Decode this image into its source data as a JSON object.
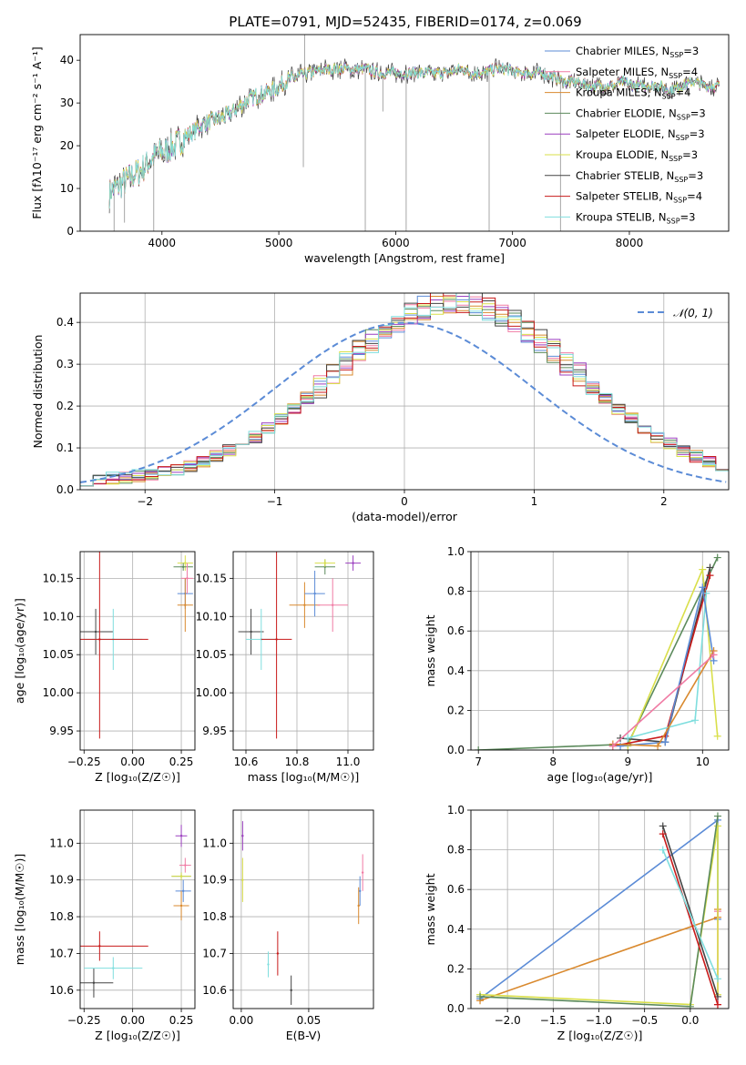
{
  "figure_title": "PLATE=0791, MJD=52435, FIBERID=0174, z=0.069",
  "colors": {
    "Chabrier MILES": "#5b8bd6",
    "Salpeter MILES": "#f07ba4",
    "Kroupa MILES": "#d9892e",
    "Chabrier ELODIE": "#5b8a5b",
    "Salpeter ELODIE": "#9b3fbf",
    "Kroupa ELODIE": "#d9df4a",
    "Chabrier STELIB": "#444444",
    "Salpeter STELIB": "#c81a1a",
    "Kroupa STELIB": "#7fdede"
  },
  "chart_data": [
    {
      "id": "spectrum",
      "type": "line",
      "title": "PLATE=0791, MJD=52435, FIBERID=0174, z=0.069",
      "xlabel": "wavelength [Angstrom, rest frame]",
      "ylabel": "Flux [fλ10⁻¹⁷ erg cm⁻² s⁻¹ A⁻¹]",
      "xlim": [
        3300,
        8850
      ],
      "ylim": [
        0,
        46
      ],
      "xticks": [
        4000,
        5000,
        6000,
        7000,
        8000
      ],
      "yticks": [
        0,
        10,
        20,
        30,
        40
      ],
      "legend_position": "top-right",
      "series_legend": [
        {
          "model": "Chabrier MILES",
          "label": "Chabrier MILES, N",
          "nssp": "=3"
        },
        {
          "model": "Salpeter MILES",
          "label": "Salpeter MILES, N",
          "nssp": "=4"
        },
        {
          "model": "Kroupa MILES",
          "label": "Kroupa MILES, N",
          "nssp": "=4"
        },
        {
          "model": "Chabrier ELODIE",
          "label": "Chabrier ELODIE, N",
          "nssp": "=3"
        },
        {
          "model": "Salpeter ELODIE",
          "label": "Salpeter ELODIE, N",
          "nssp": "=3"
        },
        {
          "model": "Kroupa ELODIE",
          "label": "Kroupa ELODIE, N",
          "nssp": "=3"
        },
        {
          "model": "Chabrier STELIB",
          "label": "Chabrier STELIB, N",
          "nssp": "=3"
        },
        {
          "model": "Salpeter STELIB",
          "label": "Salpeter STELIB, N",
          "nssp": "=4"
        },
        {
          "model": "Kroupa STELIB",
          "label": "Kroupa STELIB, N",
          "nssp": "=3"
        }
      ],
      "nssp_subscript": "SSP",
      "continuum": [
        [
          3550,
          9
        ],
        [
          3650,
          11
        ],
        [
          3750,
          13
        ],
        [
          3850,
          15
        ],
        [
          3950,
          18
        ],
        [
          4050,
          19
        ],
        [
          4150,
          21
        ],
        [
          4250,
          23
        ],
        [
          4350,
          25
        ],
        [
          4450,
          26
        ],
        [
          4550,
          27
        ],
        [
          4650,
          29
        ],
        [
          4750,
          31
        ],
        [
          4850,
          32
        ],
        [
          4950,
          33
        ],
        [
          5050,
          35
        ],
        [
          5150,
          36
        ],
        [
          5250,
          37
        ],
        [
          5350,
          37.5
        ],
        [
          5450,
          38
        ],
        [
          5550,
          38
        ],
        [
          5650,
          38
        ],
        [
          5750,
          38
        ],
        [
          5850,
          37
        ],
        [
          5950,
          37
        ],
        [
          6050,
          37
        ],
        [
          6150,
          37
        ],
        [
          6250,
          37
        ],
        [
          6350,
          37
        ],
        [
          6450,
          37
        ],
        [
          6550,
          38
        ],
        [
          6650,
          37
        ],
        [
          6750,
          37
        ],
        [
          6850,
          38
        ],
        [
          6950,
          38
        ],
        [
          7050,
          37
        ],
        [
          7150,
          37
        ],
        [
          7250,
          37
        ],
        [
          7350,
          36
        ],
        [
          7450,
          35
        ],
        [
          7550,
          35
        ],
        [
          7650,
          34
        ],
        [
          7750,
          34
        ],
        [
          7850,
          34
        ],
        [
          7950,
          35
        ],
        [
          8050,
          34
        ],
        [
          8150,
          34
        ],
        [
          8250,
          34
        ],
        [
          8350,
          33
        ],
        [
          8450,
          34
        ],
        [
          8550,
          35
        ],
        [
          8650,
          34
        ],
        [
          8770,
          34
        ]
      ],
      "spikes": [
        [
          3590,
          0
        ],
        [
          3680,
          2
        ],
        [
          3930,
          0
        ],
        [
          5210,
          15
        ],
        [
          5220,
          46
        ],
        [
          5740,
          0
        ],
        [
          5890,
          28
        ],
        [
          6090,
          0
        ],
        [
          6800,
          0
        ],
        [
          7410,
          0
        ]
      ]
    },
    {
      "id": "residuals",
      "type": "step",
      "xlabel": "(data-model)/error",
      "ylabel": "Normed distribution",
      "xlim": [
        -2.5,
        2.5
      ],
      "ylim": [
        0,
        0.47
      ],
      "xticks": [
        -2,
        -1,
        0,
        1,
        2
      ],
      "yticks": [
        0.0,
        0.1,
        0.2,
        0.3,
        0.4
      ],
      "bin_width": 0.1,
      "reference_label": "𝒩(0, 1)",
      "reference_color": "#5b8bd6",
      "legend_position": "top-right",
      "histogram_mean": 0.4,
      "histogram_sigma": 0.93
    },
    {
      "id": "age-vs-Z",
      "type": "scatter",
      "xlabel": "Z [log₁₀(Z/Z☉)]",
      "ylabel": "age  [log₁₀(age/yr)]",
      "xlim": [
        -0.27,
        0.32
      ],
      "ylim": [
        9.925,
        10.185
      ],
      "xticks": [
        -0.25,
        0.0,
        0.25
      ],
      "yticks": [
        9.95,
        10.0,
        10.05,
        10.1,
        10.15
      ],
      "points": [
        {
          "model": "Chabrier STELIB",
          "x": -0.19,
          "y": 10.08,
          "xerr": 0.09,
          "yerr": 0.03
        },
        {
          "model": "Kroupa STELIB",
          "x": -0.1,
          "y": 10.07,
          "xerr": 0.15,
          "yerr": 0.04
        },
        {
          "model": "Salpeter STELIB",
          "x": -0.17,
          "y": 10.07,
          "xerr": 0.25,
          "yerr": 0.13
        },
        {
          "model": "Kroupa ELODIE",
          "x": 0.27,
          "y": 10.17,
          "xerr": 0.04,
          "yerr": 0.01
        },
        {
          "model": "Chabrier ELODIE",
          "x": 0.26,
          "y": 10.165,
          "xerr": 0.05,
          "yerr": 0.005
        },
        {
          "model": "Chabrier MILES",
          "x": 0.27,
          "y": 10.13,
          "xerr": 0.04,
          "yerr": 0.02
        },
        {
          "model": "Salpeter MILES",
          "x": 0.28,
          "y": 10.15,
          "xerr": 0.03,
          "yerr": 0.02
        },
        {
          "model": "Kroupa MILES",
          "x": 0.27,
          "y": 10.115,
          "xerr": 0.04,
          "yerr": 0.035
        }
      ]
    },
    {
      "id": "age-vs-mass",
      "type": "scatter",
      "xlabel": "mass [log₁₀(M/M☉)]",
      "ylabel": "",
      "xlim": [
        10.55,
        11.1
      ],
      "ylim": [
        9.925,
        10.185
      ],
      "xticks": [
        10.6,
        10.8,
        11.0
      ],
      "yticks": [
        9.95,
        10.0,
        10.05,
        10.1,
        10.15
      ],
      "points": [
        {
          "model": "Chabrier STELIB",
          "x": 10.62,
          "y": 10.08,
          "xerr": 0.05,
          "yerr": 0.03
        },
        {
          "model": "Kroupa STELIB",
          "x": 10.66,
          "y": 10.07,
          "xerr": 0.06,
          "yerr": 0.04
        },
        {
          "model": "Salpeter STELIB",
          "x": 10.72,
          "y": 10.07,
          "xerr": 0.06,
          "yerr": 0.13
        },
        {
          "model": "Kroupa MILES",
          "x": 10.83,
          "y": 10.115,
          "xerr": 0.06,
          "yerr": 0.03
        },
        {
          "model": "Chabrier MILES",
          "x": 10.87,
          "y": 10.13,
          "xerr": 0.04,
          "yerr": 0.03
        },
        {
          "model": "Salpeter MILES",
          "x": 10.94,
          "y": 10.115,
          "xerr": 0.06,
          "yerr": 0.035
        },
        {
          "model": "Chabrier ELODIE",
          "x": 10.91,
          "y": 10.165,
          "xerr": 0.04,
          "yerr": 0.01
        },
        {
          "model": "Kroupa ELODIE",
          "x": 10.91,
          "y": 10.17,
          "xerr": 0.04,
          "yerr": 0.005
        },
        {
          "model": "Salpeter ELODIE",
          "x": 11.02,
          "y": 10.17,
          "xerr": 0.03,
          "yerr": 0.01
        }
      ]
    },
    {
      "id": "weight-vs-age",
      "type": "line",
      "xlabel": "age  [log₁₀(age/yr)]",
      "ylabel": "mass weight",
      "xlim": [
        6.9,
        10.35
      ],
      "ylim": [
        0,
        1
      ],
      "xticks": [
        7,
        8,
        9,
        10
      ],
      "yticks": [
        0.0,
        0.2,
        0.4,
        0.6,
        0.8,
        1.0
      ],
      "series": [
        {
          "model": "Chabrier ELODIE",
          "x": [
            7.0,
            9.0,
            10.2
          ],
          "y": [
            0.0,
            0.03,
            0.97
          ]
        },
        {
          "model": "Kroupa ELODIE",
          "x": [
            9.0,
            10.0,
            10.2
          ],
          "y": [
            0.02,
            0.91,
            0.07
          ]
        },
        {
          "model": "Chabrier STELIB",
          "x": [
            8.9,
            9.5,
            10.1
          ],
          "y": [
            0.06,
            0.04,
            0.92
          ]
        },
        {
          "model": "Salpeter STELIB",
          "x": [
            8.8,
            9.5,
            10.1
          ],
          "y": [
            0.02,
            0.07,
            0.88
          ]
        },
        {
          "model": "Kroupa STELIB",
          "x": [
            9.0,
            9.9,
            10.05
          ],
          "y": [
            0.06,
            0.15,
            0.79
          ]
        },
        {
          "model": "Chabrier MILES",
          "x": [
            8.9,
            9.5,
            10.0,
            10.15
          ],
          "y": [
            0.02,
            0.04,
            0.82,
            0.45
          ]
        },
        {
          "model": "Kroupa MILES",
          "x": [
            8.8,
            9.4,
            10.15
          ],
          "y": [
            0.03,
            0.02,
            0.5
          ]
        },
        {
          "model": "Salpeter MILES",
          "x": [
            8.8,
            10.15
          ],
          "y": [
            0.02,
            0.48
          ]
        }
      ]
    },
    {
      "id": "mass-vs-Z",
      "type": "scatter",
      "xlabel": "Z [log₁₀(Z/Z☉)]",
      "ylabel": "mass [log₁₀(M/M☉)]",
      "xlim": [
        -0.27,
        0.32
      ],
      "ylim": [
        10.55,
        11.09
      ],
      "xticks": [
        -0.25,
        0.0,
        0.25
      ],
      "yticks": [
        10.6,
        10.7,
        10.8,
        10.9,
        11.0
      ],
      "points": [
        {
          "model": "Chabrier STELIB",
          "x": -0.2,
          "y": 10.62,
          "xerr": 0.1,
          "yerr": 0.04
        },
        {
          "model": "Kroupa STELIB",
          "x": -0.1,
          "y": 10.66,
          "xerr": 0.15,
          "yerr": 0.03
        },
        {
          "model": "Salpeter STELIB",
          "x": -0.17,
          "y": 10.72,
          "xerr": 0.25,
          "yerr": 0.04
        },
        {
          "model": "Salpeter ELODIE",
          "x": 0.25,
          "y": 11.02,
          "xerr": 0.03,
          "yerr": 0.03
        },
        {
          "model": "Salpeter MILES",
          "x": 0.27,
          "y": 10.94,
          "xerr": 0.03,
          "yerr": 0.02
        },
        {
          "model": "Chabrier ELODIE",
          "x": 0.25,
          "y": 10.91,
          "xerr": 0.05,
          "yerr": 0.01
        },
        {
          "model": "Kroupa ELODIE",
          "x": 0.25,
          "y": 10.91,
          "xerr": 0.05,
          "yerr": 0.01
        },
        {
          "model": "Chabrier MILES",
          "x": 0.26,
          "y": 10.87,
          "xerr": 0.04,
          "yerr": 0.03
        },
        {
          "model": "Kroupa MILES",
          "x": 0.25,
          "y": 10.83,
          "xerr": 0.04,
          "yerr": 0.04
        }
      ]
    },
    {
      "id": "mass-vs-ebv",
      "type": "scatter",
      "xlabel": "E(B-V)",
      "ylabel": "",
      "xlim": [
        -0.006,
        0.098
      ],
      "ylim": [
        10.55,
        11.09
      ],
      "xticks": [
        0.0,
        0.05
      ],
      "yticks": [
        10.6,
        10.7,
        10.8,
        10.9,
        11.0
      ],
      "points": [
        {
          "model": "Salpeter ELODIE",
          "x": 0.001,
          "y": 11.02,
          "xerr": 0,
          "yerr": 0.04
        },
        {
          "model": "Kroupa ELODIE",
          "x": 0.001,
          "y": 10.9,
          "xerr": 0,
          "yerr": 0.06
        },
        {
          "model": "Kroupa STELIB",
          "x": 0.02,
          "y": 10.67,
          "xerr": 0,
          "yerr": 0.035
        },
        {
          "model": "Salpeter STELIB",
          "x": 0.027,
          "y": 10.7,
          "xerr": 0,
          "yerr": 0.06
        },
        {
          "model": "Chabrier STELIB",
          "x": 0.037,
          "y": 10.6,
          "xerr": 0,
          "yerr": 0.04
        },
        {
          "model": "Salpeter MILES",
          "x": 0.09,
          "y": 10.92,
          "xerr": 0,
          "yerr": 0.05
        },
        {
          "model": "Chabrier MILES",
          "x": 0.088,
          "y": 10.87,
          "xerr": 0,
          "yerr": 0.04
        },
        {
          "model": "Kroupa MILES",
          "x": 0.087,
          "y": 10.83,
          "xerr": 0,
          "yerr": 0.05
        }
      ]
    },
    {
      "id": "weight-vs-Z",
      "type": "line",
      "xlabel": "Z [log₁₀(Z/Z☉)]",
      "ylabel": "mass weight",
      "xlim": [
        -2.4,
        0.42
      ],
      "ylim": [
        0,
        1
      ],
      "xticks": [
        -2.0,
        -1.5,
        -1.0,
        -0.5,
        0.0
      ],
      "yticks": [
        0.0,
        0.2,
        0.4,
        0.6,
        0.8,
        1.0
      ],
      "series": [
        {
          "model": "Chabrier MILES",
          "x": [
            -2.3,
            0.3,
            0.3
          ],
          "y": [
            0.05,
            0.95,
            0.45
          ]
        },
        {
          "model": "Kroupa MILES",
          "x": [
            -2.3,
            0.3,
            0.3
          ],
          "y": [
            0.04,
            0.46,
            0.5
          ]
        },
        {
          "model": "Salpeter MILES",
          "x": [
            0.3,
            0.3
          ],
          "y": [
            0.02,
            0.49
          ]
        },
        {
          "model": "Kroupa ELODIE",
          "x": [
            -2.3,
            0.0,
            0.3,
            0.3
          ],
          "y": [
            0.07,
            0.02,
            0.92,
            0.07
          ]
        },
        {
          "model": "Chabrier ELODIE",
          "x": [
            -2.3,
            0.0,
            0.3
          ],
          "y": [
            0.06,
            0.01,
            0.97
          ]
        },
        {
          "model": "Chabrier STELIB",
          "x": [
            -0.3,
            0.3
          ],
          "y": [
            0.92,
            0.06
          ]
        },
        {
          "model": "Salpeter STELIB",
          "x": [
            -0.3,
            0.3
          ],
          "y": [
            0.88,
            0.02
          ]
        },
        {
          "model": "Kroupa STELIB",
          "x": [
            -0.3,
            0.3
          ],
          "y": [
            0.8,
            0.15
          ]
        }
      ]
    }
  ]
}
